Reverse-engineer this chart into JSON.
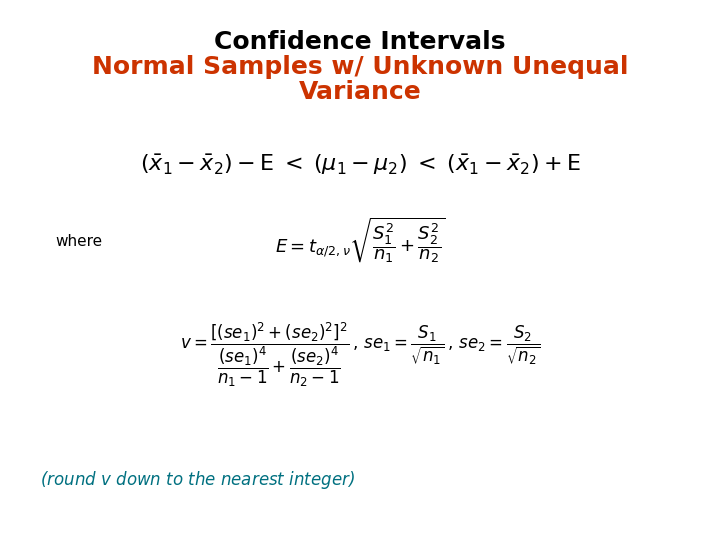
{
  "title_line1": "Confidence Intervals",
  "title_line2_a": "Normal Samples w/ Unknown Unequal",
  "title_line2_b": "Variance",
  "title_color1": "#000000",
  "title_color2": "#CC3300",
  "bg_color": "#FFFFFF",
  "where_label": "where",
  "note_color": "#007080",
  "title1_fontsize": 18,
  "title2_fontsize": 18,
  "ci_fontsize": 16,
  "where_fontsize": 11,
  "E_fontsize": 13,
  "v_fontsize": 12,
  "note_fontsize": 12
}
